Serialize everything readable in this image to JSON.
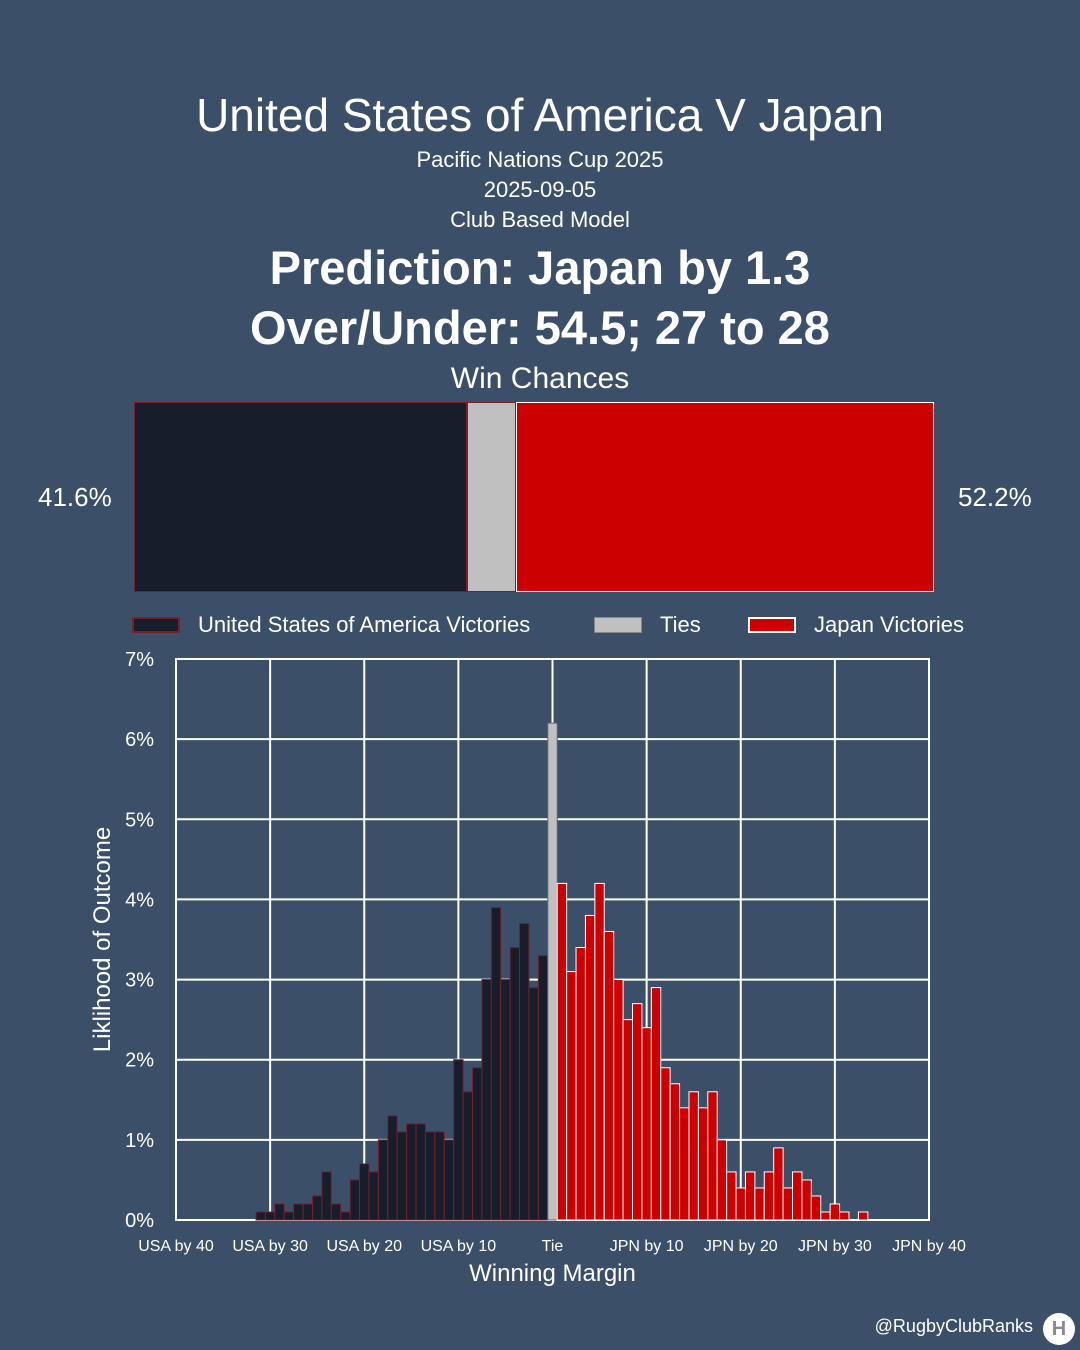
{
  "header": {
    "title": "United States of America V Japan",
    "competition": "Pacific Nations Cup 2025",
    "date": "2025-09-05",
    "model": "Club Based Model",
    "prediction": "Prediction: Japan by 1.3",
    "over_under": "Over/Under: 54.5; 27 to 28"
  },
  "win_chances": {
    "title": "Win Chances",
    "usa_value": 41.6,
    "tie_value": 6.2,
    "jpn_value": 52.2,
    "usa_label": "41.6%",
    "jpn_label": "52.2%"
  },
  "legend": {
    "usa": "United States of America Victories",
    "tie": "Ties",
    "jpn": "Japan Victories"
  },
  "colors": {
    "background": "#3b5068",
    "usa": "#181d2c",
    "usa_edge": "#7a1e2a",
    "tie": "#c0c0c0",
    "jpn": "#cc0000",
    "grid": "#ffffff"
  },
  "chart_data": {
    "type": "bar",
    "xlabel": "Winning Margin",
    "ylabel": "Liklihood of Outcome",
    "xlim": [
      -40,
      40
    ],
    "ylim": [
      0,
      7
    ],
    "grid": true,
    "x_ticks": [
      {
        "value": -40,
        "label": "USA by 40"
      },
      {
        "value": -30,
        "label": "USA by 30"
      },
      {
        "value": -20,
        "label": "USA by 20"
      },
      {
        "value": -10,
        "label": "USA by 10"
      },
      {
        "value": 0,
        "label": "Tie"
      },
      {
        "value": 10,
        "label": "JPN by 10"
      },
      {
        "value": 20,
        "label": "JPN by 20"
      },
      {
        "value": 30,
        "label": "JPN by 30"
      },
      {
        "value": 40,
        "label": "JPN by 40"
      }
    ],
    "y_ticks": [
      {
        "value": 0,
        "label": "0%"
      },
      {
        "value": 1,
        "label": "1%"
      },
      {
        "value": 2,
        "label": "2%"
      },
      {
        "value": 3,
        "label": "3%"
      },
      {
        "value": 4,
        "label": "4%"
      },
      {
        "value": 5,
        "label": "5%"
      },
      {
        "value": 6,
        "label": "6%"
      },
      {
        "value": 7,
        "label": "7%"
      }
    ],
    "series": [
      {
        "name": "United States of America Victories",
        "x": [
          -31,
          -30,
          -29,
          -28,
          -27,
          -26,
          -25,
          -24,
          -23,
          -22,
          -21,
          -20,
          -19,
          -18,
          -17,
          -16,
          -15,
          -14,
          -13,
          -12,
          -11,
          -10,
          -9,
          -8,
          -7,
          -6,
          -5,
          -4,
          -3,
          -2,
          -1
        ],
        "values": [
          0.1,
          0.1,
          0.2,
          0.1,
          0.2,
          0.2,
          0.3,
          0.6,
          0.2,
          0.1,
          0.5,
          0.7,
          0.6,
          1.0,
          1.3,
          1.1,
          1.2,
          1.2,
          1.1,
          1.1,
          1.0,
          2.0,
          1.6,
          1.9,
          3.0,
          3.9,
          3.0,
          3.4,
          3.7,
          2.9,
          3.3
        ]
      },
      {
        "name": "Ties",
        "x": [
          0
        ],
        "values": [
          6.2
        ]
      },
      {
        "name": "Japan Victories",
        "x": [
          1,
          2,
          3,
          4,
          5,
          6,
          7,
          8,
          9,
          10,
          11,
          12,
          13,
          14,
          15,
          16,
          17,
          18,
          19,
          20,
          21,
          22,
          23,
          24,
          25,
          26,
          27,
          28,
          29,
          30,
          31,
          32,
          33,
          34
        ],
        "values": [
          4.2,
          3.1,
          3.4,
          3.8,
          4.2,
          3.6,
          3.0,
          2.5,
          2.7,
          2.4,
          2.9,
          1.9,
          1.7,
          1.4,
          1.6,
          1.4,
          1.6,
          1.0,
          0.6,
          0.4,
          0.6,
          0.4,
          0.6,
          0.9,
          0.4,
          0.6,
          0.5,
          0.3,
          0.1,
          0.2,
          0.1,
          0.0,
          0.1,
          0.0
        ]
      }
    ]
  },
  "footer": {
    "credit": "@RugbyClubRanks"
  }
}
